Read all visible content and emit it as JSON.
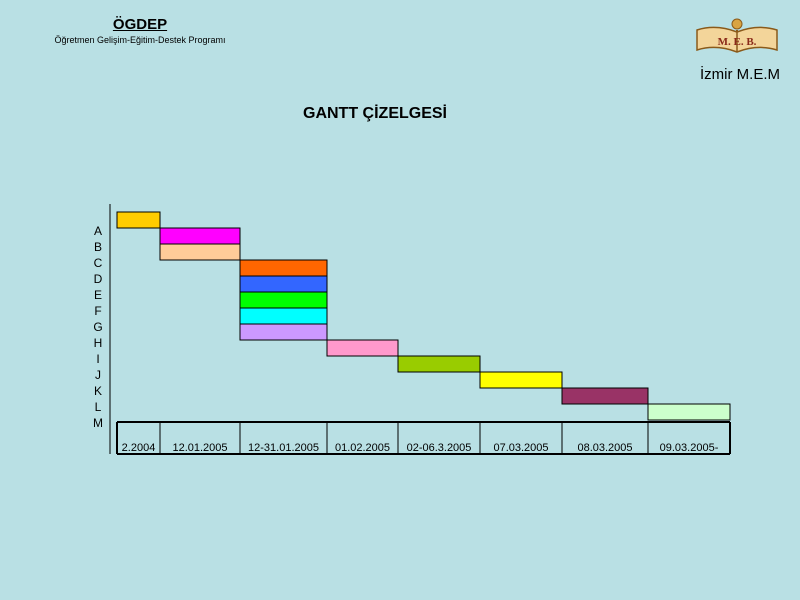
{
  "header": {
    "org_title": "ÖGDEP",
    "org_subtitle": "Öğretmen Gelişim-Eğitim-Destek Programı",
    "region": "İzmir M.E.M",
    "logo_icon": "meb-book-logo-icon",
    "logo_text": "M. E. B."
  },
  "chart_data": {
    "type": "gantt",
    "title": "GANTT ÇİZELGESİ",
    "periods": [
      "2.2004",
      "12.01.2005",
      "12-31.01.2005",
      "01.02.2005",
      "02-06.3.2005",
      "07.03.2005",
      "08.03.2005",
      "09.03.2005-"
    ],
    "tasks": [
      {
        "label": "A",
        "start": 0,
        "end": 1,
        "color": "#ffcc00"
      },
      {
        "label": "B",
        "start": 1,
        "end": 2,
        "color": "#ff00ff"
      },
      {
        "label": "C",
        "start": 1,
        "end": 2,
        "color": "#ffcc99"
      },
      {
        "label": "D",
        "start": 2,
        "end": 3,
        "color": "#ff6600"
      },
      {
        "label": "E",
        "start": 2,
        "end": 3,
        "color": "#3366ff"
      },
      {
        "label": "F",
        "start": 2,
        "end": 3,
        "color": "#00ff00"
      },
      {
        "label": "G",
        "start": 2,
        "end": 3,
        "color": "#00ffff"
      },
      {
        "label": "H",
        "start": 2,
        "end": 3,
        "color": "#cc99ff"
      },
      {
        "label": "I",
        "start": 3,
        "end": 4,
        "color": "#ff99cc"
      },
      {
        "label": "J",
        "start": 4,
        "end": 5,
        "color": "#99cc00"
      },
      {
        "label": "K",
        "start": 5,
        "end": 6,
        "color": "#ffff00"
      },
      {
        "label": "L",
        "start": 6,
        "end": 7,
        "color": "#993366"
      },
      {
        "label": "M",
        "start": 7,
        "end": 8,
        "color": "#ccffcc"
      }
    ]
  }
}
